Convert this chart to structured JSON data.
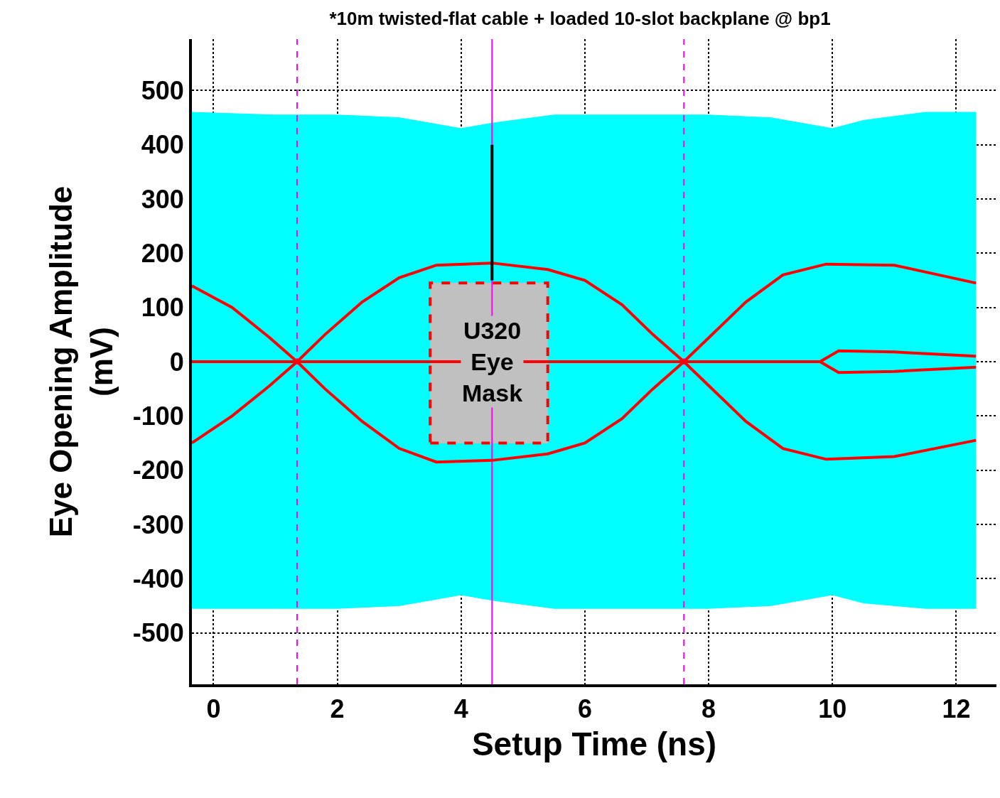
{
  "chart_data": {
    "type": "line",
    "title": "*10m twisted-flat cable + loaded 10-slot backplane @ bp1",
    "xlabel": "Setup Time (ns)",
    "ylabel": "Eye Opening Amplitude\n(mV)",
    "xlim": [
      -0.35,
      12.65
    ],
    "xticks": [
      0,
      2,
      4,
      6,
      8,
      10,
      12
    ],
    "ylim": [
      -595,
      595
    ],
    "yticks": [
      -500,
      -400,
      -300,
      -200,
      -100,
      0,
      100,
      200,
      300,
      400,
      500
    ],
    "grid": true,
    "marker": "none",
    "series": [
      {
        "type": "area",
        "color": "#00ffff",
        "x": [
          -0.35,
          1,
          2,
          3,
          3.5,
          4,
          4.5,
          5.5,
          7,
          8,
          9,
          9.5,
          10,
          10.5,
          11.5,
          12.32
        ],
        "values": [
          460,
          455,
          455,
          450,
          440,
          430,
          440,
          455,
          455,
          455,
          450,
          440,
          430,
          445,
          460,
          460
        ]
      },
      {
        "type": "area",
        "color": "#00ffff",
        "x": [
          -0.35,
          1,
          2,
          3,
          3.5,
          4,
          4.5,
          5.5,
          7,
          8,
          9,
          9.5,
          10,
          10.5,
          11.5,
          12.32
        ],
        "values": [
          -455,
          -455,
          -455,
          -450,
          -440,
          -430,
          -440,
          -455,
          -455,
          -455,
          -450,
          -440,
          -430,
          -445,
          -455,
          -455
        ]
      },
      {
        "color": "#ff0000",
        "x": [
          -0.35,
          0.3,
          0.9,
          1.35,
          1.8,
          2.4,
          3.0,
          3.6,
          4.5,
          5.4,
          6.0,
          6.6,
          7.1,
          7.6,
          8.1,
          8.6,
          9.2,
          9.9,
          11.0,
          12.32
        ],
        "values": [
          -150,
          -100,
          -45,
          0,
          50,
          110,
          155,
          178,
          182,
          170,
          150,
          105,
          50,
          0,
          -55,
          -110,
          -160,
          -180,
          -175,
          -145
        ]
      },
      {
        "color": "#ff0000",
        "x": [
          -0.35,
          0.3,
          0.9,
          1.35,
          1.8,
          2.4,
          3.0,
          3.6,
          4.5,
          5.4,
          6.0,
          6.6,
          7.1,
          7.6,
          8.1,
          8.6,
          9.2,
          9.9,
          11.0,
          12.32
        ],
        "values": [
          140,
          100,
          45,
          0,
          -50,
          -110,
          -160,
          -185,
          -182,
          -170,
          -150,
          -105,
          -50,
          0,
          55,
          110,
          160,
          180,
          178,
          145
        ]
      },
      {
        "color": "#ff0000",
        "x": [
          -0.35,
          9.8
        ],
        "values": [
          0,
          0
        ]
      },
      {
        "color": "#ff0000",
        "x": [
          9.8,
          10.1,
          11,
          12.32
        ],
        "values": [
          0,
          20,
          18,
          10
        ]
      },
      {
        "color": "#ff0000",
        "x": [
          9.8,
          10.1,
          11,
          12.32
        ],
        "values": [
          0,
          -20,
          -18,
          -10
        ]
      },
      {
        "type": "area",
        "color": "#c0c0c0",
        "x": [
          3.5,
          5.4
        ],
        "values": [
          145,
          145
        ]
      },
      {
        "type": "area",
        "color": "#c0c0c0",
        "x": [
          3.5,
          5.4
        ],
        "values": [
          -150,
          -150
        ]
      },
      {
        "color": "#000000",
        "x": [
          4.5,
          4.5
        ],
        "values": [
          150,
          400
        ]
      }
    ],
    "ref_lines": [
      {
        "axis": "x",
        "value": 1.35,
        "color": "#ff00ff",
        "line_style": "dashed"
      },
      {
        "axis": "x",
        "value": 4.5,
        "color": "#ff00ff",
        "line_style": "solid"
      },
      {
        "axis": "x",
        "value": 7.6,
        "color": "#ff00ff",
        "line_style": "dashed"
      }
    ],
    "annotations": [
      {
        "text": "U320\nEye\nMask",
        "x": 4.5,
        "y": 0
      }
    ]
  }
}
